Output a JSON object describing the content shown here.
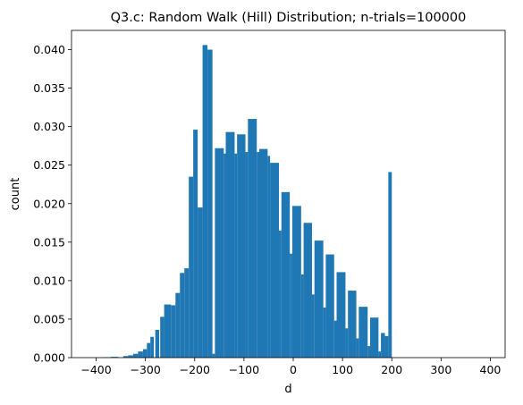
{
  "chart_data": {
    "type": "bar",
    "title": "Q3.c: Random Walk (Hill) Distribution; n-trials=100000",
    "xlabel": "d",
    "ylabel": "count",
    "xlim": [
      -450,
      430
    ],
    "ylim": [
      0,
      0.0425
    ],
    "xticks": [
      -400,
      -300,
      -200,
      -100,
      0,
      100,
      200,
      300,
      400
    ],
    "xtick_labels": [
      "−400",
      "−300",
      "−200",
      "−100",
      "0",
      "100",
      "200",
      "300",
      "400"
    ],
    "yticks": [
      0,
      0.005,
      0.01,
      0.015,
      0.02,
      0.025,
      0.03,
      0.035,
      0.04
    ],
    "ytick_labels": [
      "0.000",
      "0.005",
      "0.010",
      "0.015",
      "0.020",
      "0.025",
      "0.030",
      "0.035",
      "0.040"
    ],
    "grid": false,
    "bar_color": "#1f77b4",
    "bars": [
      {
        "x0": -385,
        "x1": -370,
        "y": 5e-05
      },
      {
        "x0": -370,
        "x1": -355,
        "y": 0.0001
      },
      {
        "x0": -345,
        "x1": -335,
        "y": 0.0002
      },
      {
        "x0": -335,
        "x1": -325,
        "y": 0.0003
      },
      {
        "x0": -325,
        "x1": -315,
        "y": 0.0005
      },
      {
        "x0": -315,
        "x1": -305,
        "y": 0.0008
      },
      {
        "x0": -305,
        "x1": -297,
        "y": 0.0011
      },
      {
        "x0": -297,
        "x1": -290,
        "y": 0.0019
      },
      {
        "x0": -290,
        "x1": -283,
        "y": 0.0027
      },
      {
        "x0": -280,
        "x1": -272,
        "y": 0.0036
      },
      {
        "x0": -270,
        "x1": -262,
        "y": 0.0053
      },
      {
        "x0": -262,
        "x1": -248,
        "y": 0.0069
      },
      {
        "x0": -248,
        "x1": -239,
        "y": 0.0068
      },
      {
        "x0": -239,
        "x1": -230,
        "y": 0.0084
      },
      {
        "x0": -230,
        "x1": -221,
        "y": 0.011
      },
      {
        "x0": -221,
        "x1": -212,
        "y": 0.0116
      },
      {
        "x0": -212,
        "x1": -203,
        "y": 0.0235
      },
      {
        "x0": -203,
        "x1": -194,
        "y": 0.0296
      },
      {
        "x0": -194,
        "x1": -184,
        "y": 0.0195
      },
      {
        "x0": -184,
        "x1": -174,
        "y": 0.0406
      },
      {
        "x0": -174,
        "x1": -164,
        "y": 0.04
      },
      {
        "x0": -164,
        "x1": -159,
        "y": 0.0005
      },
      {
        "x0": -159,
        "x1": -141,
        "y": 0.0272
      },
      {
        "x0": -141,
        "x1": -137,
        "y": 0.0265
      },
      {
        "x0": -137,
        "x1": -119,
        "y": 0.0293
      },
      {
        "x0": -119,
        "x1": -114,
        "y": 0.0265
      },
      {
        "x0": -114,
        "x1": -97,
        "y": 0.029
      },
      {
        "x0": -97,
        "x1": -92,
        "y": 0.0267
      },
      {
        "x0": -92,
        "x1": -74,
        "y": 0.031
      },
      {
        "x0": -74,
        "x1": -69,
        "y": 0.0267
      },
      {
        "x0": -69,
        "x1": -52,
        "y": 0.0271
      },
      {
        "x0": -52,
        "x1": -47,
        "y": 0.0262
      },
      {
        "x0": -47,
        "x1": -29,
        "y": 0.0253
      },
      {
        "x0": -29,
        "x1": -24,
        "y": 0.0165
      },
      {
        "x0": -24,
        "x1": -7,
        "y": 0.0215
      },
      {
        "x0": -7,
        "x1": -2,
        "y": 0.0135
      },
      {
        "x0": -2,
        "x1": 16,
        "y": 0.0197
      },
      {
        "x0": 16,
        "x1": 21,
        "y": 0.0108
      },
      {
        "x0": 21,
        "x1": 38,
        "y": 0.0175
      },
      {
        "x0": 38,
        "x1": 43,
        "y": 0.0082
      },
      {
        "x0": 43,
        "x1": 61,
        "y": 0.0152
      },
      {
        "x0": 61,
        "x1": 66,
        "y": 0.0065
      },
      {
        "x0": 66,
        "x1": 83,
        "y": 0.0134
      },
      {
        "x0": 83,
        "x1": 88,
        "y": 0.0048
      },
      {
        "x0": 88,
        "x1": 106,
        "y": 0.0111
      },
      {
        "x0": 106,
        "x1": 111,
        "y": 0.0038
      },
      {
        "x0": 111,
        "x1": 128,
        "y": 0.0087
      },
      {
        "x0": 128,
        "x1": 133,
        "y": 0.0025
      },
      {
        "x0": 133,
        "x1": 151,
        "y": 0.0066
      },
      {
        "x0": 151,
        "x1": 156,
        "y": 0.0015
      },
      {
        "x0": 156,
        "x1": 173,
        "y": 0.0052
      },
      {
        "x0": 173,
        "x1": 178,
        "y": 0.0008
      },
      {
        "x0": 178,
        "x1": 186,
        "y": 0.0032
      },
      {
        "x0": 186,
        "x1": 193,
        "y": 0.0028
      },
      {
        "x0": 193,
        "x1": 200,
        "y": 0.0241
      }
    ]
  }
}
